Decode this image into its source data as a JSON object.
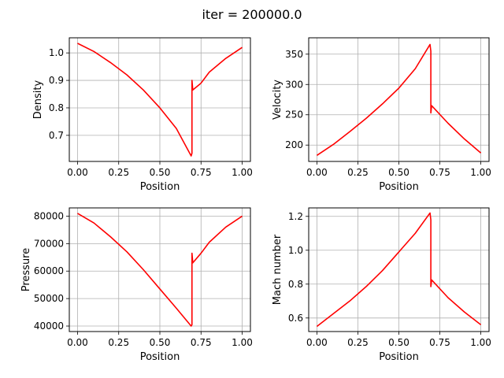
{
  "figure": {
    "suptitle": "iter = 200000.0"
  },
  "chart_data": [
    {
      "type": "line",
      "title": "",
      "xlabel": "Position",
      "ylabel": "Density",
      "xlim": [
        -0.05,
        1.05
      ],
      "ylim": [
        0.605,
        1.055
      ],
      "xticks": [
        0.0,
        0.25,
        0.5,
        0.75,
        1.0
      ],
      "xtick_labels": [
        "0.00",
        "0.25",
        "0.50",
        "0.75",
        "1.00"
      ],
      "yticks": [
        0.7,
        0.8,
        0.9,
        1.0
      ],
      "ytick_labels": [
        "0.7",
        "0.8",
        "0.9",
        "1.0"
      ],
      "grid": true,
      "series": [
        {
          "color": "#ff0000",
          "x": [
            0.0,
            0.1,
            0.2,
            0.3,
            0.4,
            0.5,
            0.6,
            0.69,
            0.695,
            0.695,
            0.7,
            0.75,
            0.8,
            0.9,
            1.0
          ],
          "y": [
            1.035,
            1.005,
            0.965,
            0.92,
            0.865,
            0.8,
            0.725,
            0.625,
            0.635,
            0.9,
            0.865,
            0.89,
            0.93,
            0.98,
            1.02
          ]
        }
      ]
    },
    {
      "type": "line",
      "title": "",
      "xlabel": "Position",
      "ylabel": "Velocity",
      "xlim": [
        -0.05,
        1.05
      ],
      "ylim": [
        173,
        377
      ],
      "xticks": [
        0.0,
        0.25,
        0.5,
        0.75,
        1.0
      ],
      "xtick_labels": [
        "0.00",
        "0.25",
        "0.50",
        "0.75",
        "1.00"
      ],
      "yticks": [
        200,
        250,
        300,
        350
      ],
      "ytick_labels": [
        "200",
        "250",
        "300",
        "350"
      ],
      "grid": true,
      "series": [
        {
          "color": "#ff0000",
          "x": [
            0.0,
            0.1,
            0.2,
            0.3,
            0.4,
            0.5,
            0.6,
            0.69,
            0.695,
            0.695,
            0.7,
            0.8,
            0.9,
            1.0
          ],
          "y": [
            183,
            201,
            222,
            244,
            268,
            294,
            326,
            366,
            355,
            253,
            265,
            236,
            210,
            187
          ]
        }
      ]
    },
    {
      "type": "line",
      "title": "",
      "xlabel": "Position",
      "ylabel": "Pressure",
      "xlim": [
        -0.05,
        1.05
      ],
      "ylim": [
        38000,
        83000
      ],
      "xticks": [
        0.0,
        0.25,
        0.5,
        0.75,
        1.0
      ],
      "xtick_labels": [
        "0.00",
        "0.25",
        "0.50",
        "0.75",
        "1.00"
      ],
      "yticks": [
        40000,
        50000,
        60000,
        70000,
        80000
      ],
      "ytick_labels": [
        "40000",
        "50000",
        "60000",
        "70000",
        "80000"
      ],
      "grid": true,
      "series": [
        {
          "color": "#ff0000",
          "x": [
            0.0,
            0.1,
            0.2,
            0.3,
            0.4,
            0.5,
            0.6,
            0.69,
            0.695,
            0.695,
            0.7,
            0.75,
            0.8,
            0.9,
            1.0
          ],
          "y": [
            81000,
            77500,
            72500,
            67000,
            60500,
            53500,
            46500,
            40000,
            40500,
            66500,
            63000,
            66500,
            70500,
            76000,
            80000
          ]
        }
      ]
    },
    {
      "type": "line",
      "title": "",
      "xlabel": "Position",
      "ylabel": "Mach number",
      "xlim": [
        -0.05,
        1.05
      ],
      "ylim": [
        0.52,
        1.25
      ],
      "xticks": [
        0.0,
        0.25,
        0.5,
        0.75,
        1.0
      ],
      "xtick_labels": [
        "0.00",
        "0.25",
        "0.50",
        "0.75",
        "1.00"
      ],
      "yticks": [
        0.6,
        0.8,
        1.0,
        1.2
      ],
      "ytick_labels": [
        "0.6",
        "0.8",
        "1.0",
        "1.2"
      ],
      "grid": true,
      "series": [
        {
          "color": "#ff0000",
          "x": [
            0.0,
            0.1,
            0.2,
            0.3,
            0.4,
            0.5,
            0.6,
            0.69,
            0.695,
            0.695,
            0.7,
            0.8,
            0.9,
            1.0
          ],
          "y": [
            0.55,
            0.625,
            0.7,
            0.785,
            0.88,
            0.99,
            1.1,
            1.22,
            1.18,
            0.785,
            0.825,
            0.72,
            0.635,
            0.56
          ]
        }
      ]
    }
  ]
}
